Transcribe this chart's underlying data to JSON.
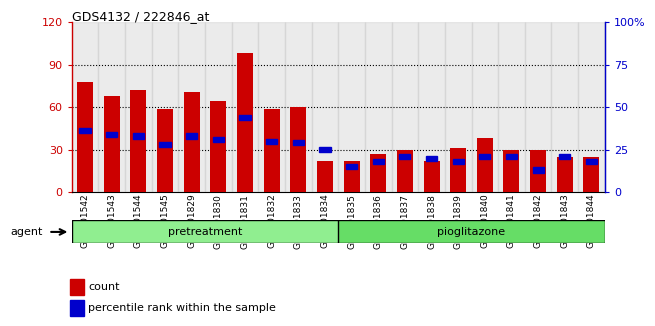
{
  "title": "GDS4132 / 222846_at",
  "samples": [
    "GSM201542",
    "GSM201543",
    "GSM201544",
    "GSM201545",
    "GSM201829",
    "GSM201830",
    "GSM201831",
    "GSM201832",
    "GSM201833",
    "GSM201834",
    "GSM201835",
    "GSM201836",
    "GSM201837",
    "GSM201838",
    "GSM201839",
    "GSM201840",
    "GSM201841",
    "GSM201842",
    "GSM201843",
    "GSM201844"
  ],
  "counts": [
    78,
    68,
    72,
    59,
    71,
    64,
    98,
    59,
    60,
    22,
    22,
    27,
    30,
    22,
    31,
    38,
    30,
    30,
    25,
    25
  ],
  "percentile_ranks": [
    36,
    34,
    33,
    28,
    33,
    31,
    44,
    30,
    29,
    25,
    15,
    18,
    21,
    20,
    18,
    21,
    21,
    13,
    21,
    18
  ],
  "groups": [
    {
      "label": "pretreatment",
      "start": 0,
      "end": 9,
      "color": "#90EE90"
    },
    {
      "label": "pioglitazone",
      "start": 10,
      "end": 19,
      "color": "#66DD66"
    }
  ],
  "ylim_left": [
    0,
    120
  ],
  "ylim_right": [
    0,
    100
  ],
  "yticks_left": [
    0,
    30,
    60,
    90,
    120
  ],
  "yticks_right": [
    0,
    25,
    50,
    75,
    100
  ],
  "ytick_labels_right": [
    "0",
    "25",
    "50",
    "75",
    "100%"
  ],
  "bar_color": "#CC0000",
  "dot_color": "#0000CC",
  "left_axis_color": "#CC0000",
  "right_axis_color": "#0000CC",
  "agent_label": "agent",
  "legend_count": "count",
  "legend_pct": "percentile rank within the sample",
  "col_bg_color": "#C8C8C8"
}
